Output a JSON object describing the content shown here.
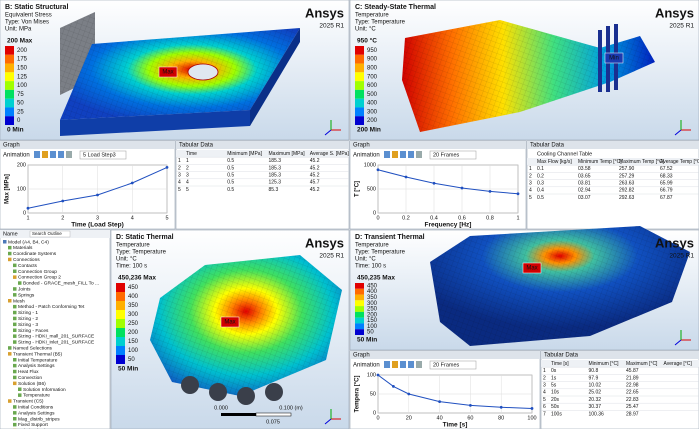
{
  "brand": {
    "name": "Ansys",
    "version": "2025 R1"
  },
  "viewports": [
    {
      "title": "B: Static Structural",
      "lines": [
        "Equivalent Stress",
        "Type: Von Mises",
        "Unit: MPa"
      ],
      "legend": {
        "top": "200 Max",
        "ticks": [
          "200",
          "175",
          "150",
          "125",
          "100",
          "75",
          "50",
          "25",
          "0"
        ],
        "bottom": "0 Min"
      },
      "probes": [
        "Max"
      ]
    },
    {
      "title": "C: Steady-State Thermal",
      "lines": [
        "Temperature",
        "Type: Temperature",
        "Unit: °C"
      ],
      "legend": {
        "top": "950 °C",
        "ticks": [
          "950",
          "900",
          "800",
          "700",
          "600",
          "500",
          "400",
          "300",
          "200"
        ],
        "bottom": "200 Min"
      },
      "probes": [
        "Min"
      ]
    },
    {
      "title": "D: Static Thermal",
      "lines": [
        "Temperature",
        "Type: Temperature",
        "Unit: °C",
        "Time: 100 s"
      ],
      "legend": {
        "top": "450,236 Max",
        "ticks": [
          "450",
          "400",
          "350",
          "300",
          "250",
          "200",
          "150",
          "100",
          "50"
        ],
        "bottom": "50 Min"
      },
      "probes": [
        "Max"
      ],
      "scale": [
        "0.000",
        "0.100 (m)",
        "0.075"
      ]
    },
    {
      "title": "D: Transient Thermal",
      "lines": [
        "Temperature",
        "Type: Temperature",
        "Unit: °C",
        "Time: 100 s"
      ],
      "legend": {
        "top": "450,235 Max",
        "ticks": [
          "450",
          "400",
          "350",
          "300",
          "250",
          "200",
          "150",
          "100",
          "50"
        ],
        "bottom": "50 Min"
      },
      "probes": [
        "Max"
      ]
    }
  ],
  "chart_data": [
    {
      "type": "line",
      "title": "Graph",
      "toolbar": [
        "Animation",
        "5 Load Step3"
      ],
      "y_label": "Max [MPa]",
      "x_label": "Time (Load Step)",
      "x": [
        1,
        2,
        3,
        4,
        5
      ],
      "values": [
        20,
        50,
        75,
        125,
        190
      ],
      "color": "#2050c0",
      "xlim": [
        1,
        5
      ],
      "ylim": [
        0,
        200
      ],
      "xticks": [
        1,
        2,
        3,
        4,
        5
      ],
      "yticks": [
        0,
        100,
        200
      ]
    },
    {
      "type": "line",
      "title": "Graph",
      "toolbar": [
        "Animation",
        "20 Frames"
      ],
      "y_label": "T [°C]",
      "x_label": "Frequency [Hz]",
      "x": [
        0,
        0.2,
        0.4,
        0.6,
        0.8,
        1
      ],
      "values": [
        900,
        750,
        620,
        520,
        450,
        400
      ],
      "color": "#2050c0",
      "xlim": [
        0,
        1
      ],
      "ylim": [
        0,
        1000
      ],
      "xticks": [
        0,
        0.2,
        0.4,
        0.6,
        0.8,
        1
      ],
      "yticks": [
        0,
        500,
        1000
      ]
    },
    {
      "type": "line",
      "title": "Graph",
      "toolbar": [
        "Animation",
        "20 Frames"
      ],
      "y_label": "Tempera [°C]",
      "x_label": "Time [s]",
      "x": [
        0,
        10,
        20,
        40,
        60,
        80,
        100
      ],
      "values": [
        100,
        70,
        50,
        30,
        20,
        15,
        12
      ],
      "color": "#2050c0",
      "xlim": [
        0,
        100
      ],
      "ylim": [
        0,
        100
      ],
      "xticks": [
        0,
        20,
        40,
        60,
        80,
        100
      ],
      "yticks": [
        0,
        50,
        100
      ]
    }
  ],
  "tables": [
    {
      "title": "Tabular Data",
      "columns": [
        "Time",
        "Minimum [MPa]",
        "Maximum [MPa]",
        "Average S. [MPa]"
      ],
      "rows": [
        [
          "1",
          "1",
          "0.5",
          "185.3",
          "45.2"
        ],
        [
          "2",
          "2",
          "0.5",
          "185.3",
          "45.2"
        ],
        [
          "3",
          "3",
          "0.5",
          "185.3",
          "45.2"
        ],
        [
          "4",
          "4",
          "0.5",
          "125.3",
          "45.7"
        ],
        [
          "5",
          "5",
          "0.5",
          "85.3",
          "45.2"
        ]
      ]
    },
    {
      "title": "Tabular Data",
      "caption": "Cooling Channel Table",
      "columns": [
        "Max Flow [kg/s]",
        "Minimum Temp [°C]",
        "Maximum Temp [°C]",
        "Average Temp [°C]"
      ],
      "rows": [
        [
          "1",
          "0.1",
          "03.58",
          "257.90",
          "67.52"
        ],
        [
          "2",
          "0.2",
          "03.65",
          "257.29",
          "68.33"
        ],
        [
          "3",
          "0.3",
          "03.81",
          "263.63",
          "65.99"
        ],
        [
          "4",
          "0.4",
          "02.94",
          "292.82",
          "66.79"
        ],
        [
          "5",
          "0.5",
          "03.07",
          "292.63",
          "67.87"
        ]
      ]
    },
    {
      "title": "Tabular Data",
      "columns": [
        "Time [s]",
        "Minimum [°C]",
        "Maximum [°C]",
        "Average [°C]"
      ],
      "rows": [
        [
          "1",
          "0s",
          "90.8",
          "45.87"
        ],
        [
          "2",
          "1s",
          "97.9",
          "21.89"
        ],
        [
          "3",
          "5s",
          "10.02",
          "22.98"
        ],
        [
          "4",
          "10s",
          "25.02",
          "22.65"
        ],
        [
          "5",
          "20s",
          "20.32",
          "22.83"
        ],
        [
          "6",
          "50s",
          "30.37",
          "25.47"
        ],
        [
          "7",
          "100s",
          "100.36",
          "28.97"
        ]
      ]
    }
  ],
  "tree": {
    "header": "Name",
    "search": "Search Outline",
    "items": [
      {
        "text": "Model (A4, B4, C4)",
        "children": [
          {
            "text": "Materials"
          },
          {
            "text": "Coordinate Systems"
          },
          {
            "text": "Connections",
            "children": [
              {
                "text": "Contacts"
              },
              {
                "text": "Connection Group"
              },
              {
                "text": "Connection Group 2",
                "children": [
                  {
                    "text": "Bonded - GRACE_mesh_FILL To ..."
                  }
                ]
              },
              {
                "text": "Joints"
              },
              {
                "text": "Springs"
              }
            ]
          },
          {
            "text": "Mesh",
            "children": [
              {
                "text": "Method - Patch Conforming Tet"
              },
              {
                "text": "Sizing - 1"
              },
              {
                "text": "Sizing - 2"
              },
              {
                "text": "Sizing - 3"
              },
              {
                "text": "Sizing - Faces"
              },
              {
                "text": "Sizing - HDKI_mall_201_SURFACE"
              },
              {
                "text": "Sizing - HDKI_inlet_201_SURFACE"
              }
            ]
          },
          {
            "text": "Named Selections"
          },
          {
            "text": "Transient Thermal (B5)",
            "children": [
              {
                "text": "Initial Temperature"
              },
              {
                "text": "Analysis Settings"
              },
              {
                "text": "Heat Flux"
              },
              {
                "text": "Convection"
              },
              {
                "text": "Solution (B6)",
                "children": [
                  {
                    "text": "Solution Information"
                  },
                  {
                    "text": "Temperature"
                  }
                ]
              }
            ]
          },
          {
            "text": "Transient (C5)",
            "children": [
              {
                "text": "Initial Conditions"
              },
              {
                "text": "Analysis Settings"
              },
              {
                "text": "Mag_distrib_stripes"
              },
              {
                "text": "Fixed Support"
              },
              {
                "text": "Solution (D6)",
                "children": [
                  {
                    "text": "Solution Information"
                  },
                  {
                    "text": "Directional Deformation"
                  }
                ]
              }
            ]
          }
        ]
      }
    ]
  }
}
